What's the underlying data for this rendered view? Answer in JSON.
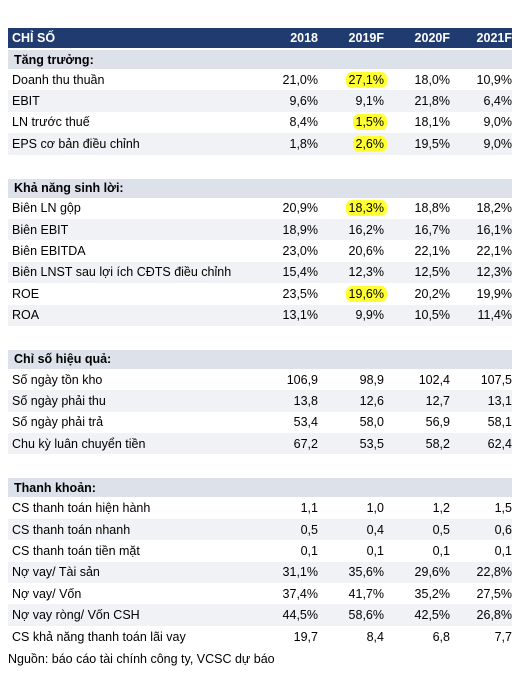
{
  "table": {
    "header": [
      "CHỈ SỐ",
      "2018",
      "2019F",
      "2020F",
      "2021F"
    ],
    "sections": [
      {
        "title": "Tăng trưởng:",
        "rows": [
          {
            "label": "Doanh thu thuần",
            "values": [
              "21,0%",
              "27,1%",
              "18,0%",
              "10,9%"
            ],
            "highlight": [
              1
            ]
          },
          {
            "label": "EBIT",
            "values": [
              "9,6%",
              "9,1%",
              "21,8%",
              "6,4%"
            ]
          },
          {
            "label": "LN trước thuế",
            "values": [
              "8,4%",
              "1,5%",
              "18,1%",
              "9,0%"
            ],
            "highlight": [
              1
            ]
          },
          {
            "label": "EPS cơ bản điều chỉnh",
            "values": [
              "1,8%",
              "2,6%",
              "19,5%",
              "9,0%"
            ],
            "highlight": [
              1
            ]
          }
        ]
      },
      {
        "title": "Khả năng sinh lời:",
        "rows": [
          {
            "label": "Biên LN gộp",
            "values": [
              "20,9%",
              "18,3%",
              "18,8%",
              "18,2%"
            ],
            "highlight": [
              1
            ]
          },
          {
            "label": "Biên EBIT",
            "values": [
              "18,9%",
              "16,2%",
              "16,7%",
              "16,1%"
            ]
          },
          {
            "label": "Biên EBITDA",
            "values": [
              "23,0%",
              "20,6%",
              "22,1%",
              "22,1%"
            ]
          },
          {
            "label": "Biên LNST sau lợi ích CĐTS điều chỉnh",
            "values": [
              "15,4%",
              "12,3%",
              "12,5%",
              "12,3%"
            ]
          },
          {
            "label": "ROE",
            "values": [
              "23,5%",
              "19,6%",
              "20,2%",
              "19,9%"
            ],
            "highlight": [
              1
            ]
          },
          {
            "label": "ROA",
            "values": [
              "13,1%",
              "9,9%",
              "10,5%",
              "11,4%"
            ]
          }
        ]
      },
      {
        "title": "Chỉ số hiệu quả:",
        "rows": [
          {
            "label": "Số ngày tồn kho",
            "values": [
              "106,9",
              "98,9",
              "102,4",
              "107,5"
            ]
          },
          {
            "label": "Số ngày phải thu",
            "values": [
              "13,8",
              "12,6",
              "12,7",
              "13,1"
            ]
          },
          {
            "label": "Số ngày phải trả",
            "values": [
              "53,4",
              "58,0",
              "56,9",
              "58,1"
            ]
          },
          {
            "label": "Chu kỳ luân chuyển tiền",
            "values": [
              "67,2",
              "53,5",
              "58,2",
              "62,4"
            ]
          }
        ]
      },
      {
        "title": "Thanh khoản:",
        "rows": [
          {
            "label": "CS thanh toán hiện hành",
            "values": [
              "1,1",
              "1,0",
              "1,2",
              "1,5"
            ]
          },
          {
            "label": "CS thanh toán nhanh",
            "values": [
              "0,5",
              "0,4",
              "0,5",
              "0,6"
            ]
          },
          {
            "label": "CS thanh toán tiền mặt",
            "values": [
              "0,1",
              "0,1",
              "0,1",
              "0,1"
            ]
          },
          {
            "label": "Nợ vay/ Tài sản",
            "values": [
              "31,1%",
              "35,6%",
              "29,6%",
              "22,8%"
            ]
          },
          {
            "label": "Nợ vay/ Vốn",
            "values": [
              "37,4%",
              "41,7%",
              "35,2%",
              "27,5%"
            ]
          },
          {
            "label": "Nợ vay ròng/ Vốn CSH",
            "values": [
              "44,5%",
              "58,6%",
              "42,5%",
              "26,8%"
            ]
          },
          {
            "label": "CS khả năng thanh toán lãi vay",
            "values": [
              "19,7",
              "8,4",
              "6,8",
              "7,7"
            ]
          }
        ]
      }
    ]
  },
  "source": "Nguồn: báo cáo tài chính công ty, VCSC dự báo"
}
